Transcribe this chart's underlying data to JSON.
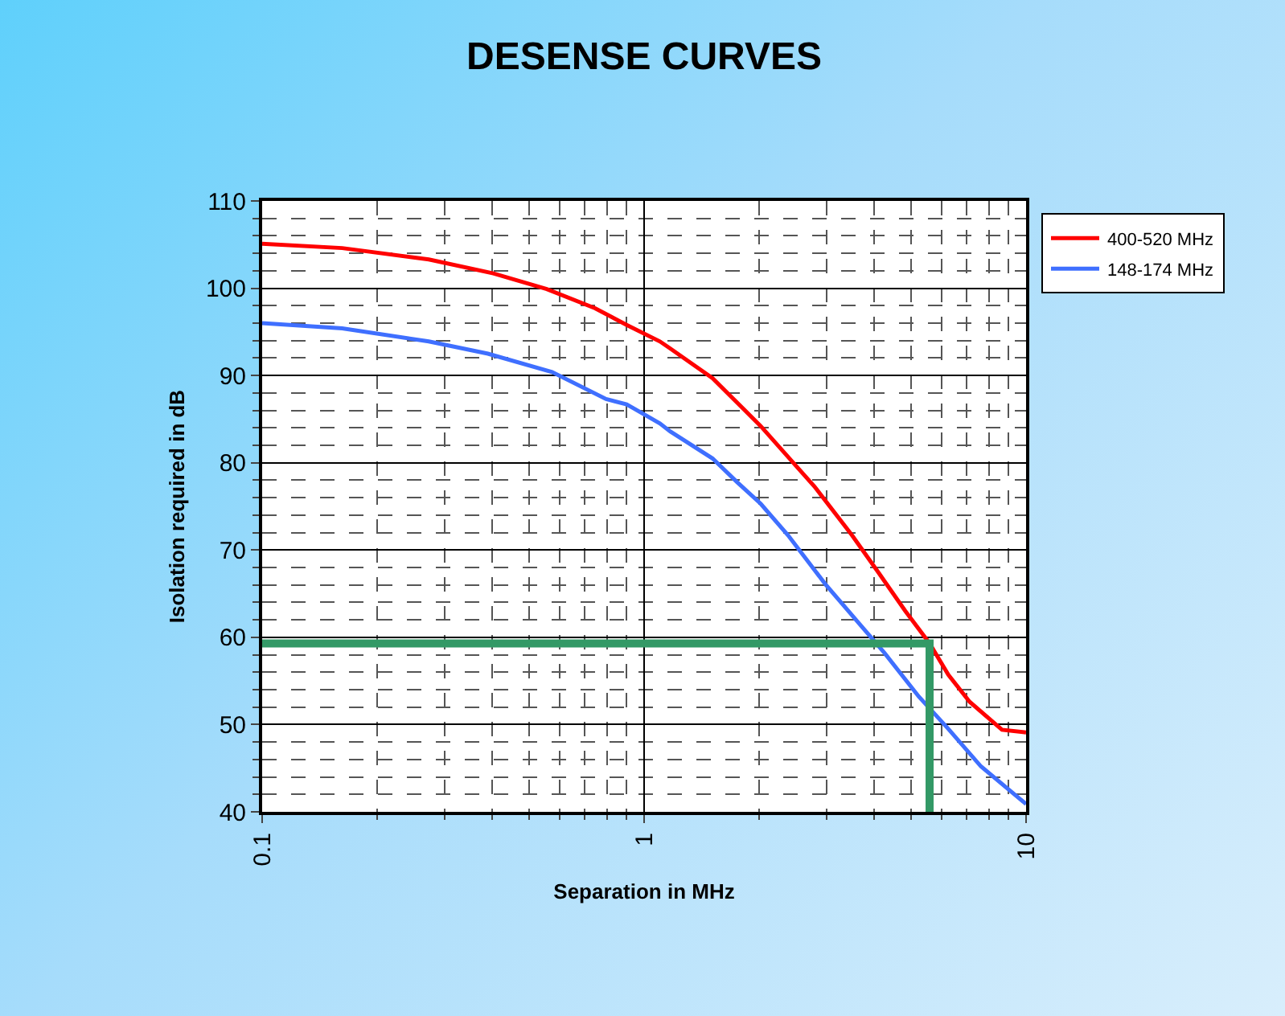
{
  "chart_data": {
    "type": "line",
    "title": "DESENSE CURVES",
    "xlabel": "Separation in MHz",
    "ylabel": "Isolation required in dB",
    "log": "x",
    "xlim": [
      0.1,
      10
    ],
    "xticks": [
      0.1,
      1,
      10
    ],
    "ylim": [
      40,
      110
    ],
    "yticks": [
      40,
      50,
      60,
      70,
      80,
      90,
      100,
      110
    ],
    "grid": true,
    "legend": "top right",
    "line_style": "solid",
    "marker": "none",
    "series": [
      {
        "name": "400-520 MHz",
        "color": "#ff0000",
        "x": [
          0.1,
          0.162,
          0.273,
          0.403,
          0.556,
          0.744,
          0.9,
          1.1,
          1.17,
          1.51,
          2.02,
          2.54,
          2.79,
          3.5,
          4.11,
          4.83,
          5.59,
          6.26,
          7.12,
          8.65,
          10
        ],
        "values": [
          105.1,
          104.6,
          103.3,
          101.7,
          99.9,
          97.7,
          95.8,
          93.9,
          93.1,
          89.7,
          84.2,
          79.3,
          77.3,
          71.7,
          67.4,
          63.0,
          59.3,
          55.7,
          52.6,
          49.4,
          49.1
        ]
      },
      {
        "name": "148-174 MHz",
        "color": "#3f6fff",
        "x": [
          0.1,
          0.162,
          0.273,
          0.39,
          0.574,
          0.795,
          0.9,
          1.1,
          1.17,
          1.51,
          1.75,
          2.02,
          2.38,
          2.98,
          3.62,
          4.26,
          5.24,
          6.26,
          7.62,
          10
        ],
        "values": [
          96.0,
          95.4,
          93.9,
          92.5,
          90.4,
          87.3,
          86.7,
          84.5,
          83.6,
          80.5,
          77.8,
          75.3,
          71.7,
          66.1,
          61.8,
          58.2,
          53.2,
          49.5,
          45.2,
          40.9
        ]
      },
      {
        "color": "#339966",
        "x": [
          0.1,
          5.59,
          5.59
        ],
        "values": [
          59.3,
          59.3,
          40
        ]
      }
    ]
  }
}
